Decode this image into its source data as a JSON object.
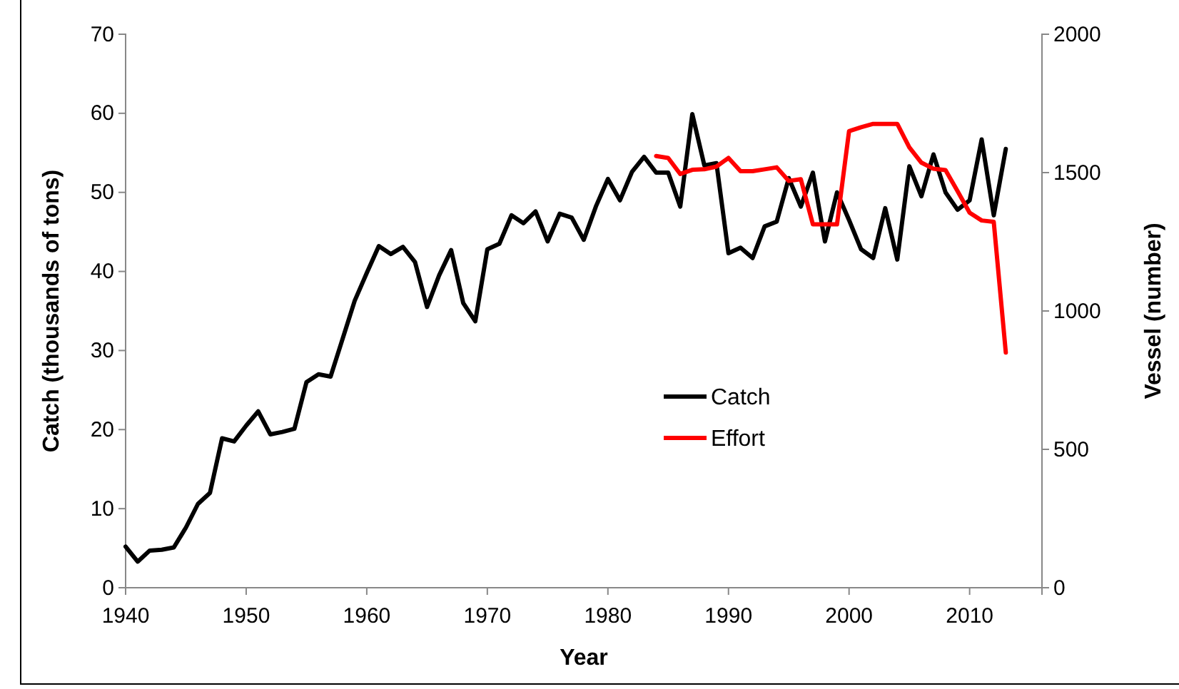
{
  "chart_data": {
    "type": "line",
    "xlabel": "Year",
    "ylabel": "Catch (thousands of tons)",
    "y2label": "Vessel (number)",
    "xlim": [
      1940,
      2016
    ],
    "xticks": [
      1940,
      1950,
      1960,
      1970,
      1980,
      1990,
      2000,
      2010
    ],
    "ylim": [
      0,
      70
    ],
    "yticks": [
      0,
      10,
      20,
      30,
      40,
      50,
      60,
      70
    ],
    "y2lim": [
      0,
      2000
    ],
    "y2ticks": [
      0,
      500,
      1000,
      1500,
      2000
    ],
    "grid": false,
    "legend": "center",
    "marker": "none",
    "line_style": "solid",
    "series": [
      {
        "name": "Catch",
        "color": "#000000",
        "x": [
          1940,
          1941,
          1942,
          1943,
          1944,
          1945,
          1946,
          1947,
          1948,
          1949,
          1950,
          1951,
          1952,
          1953,
          1954,
          1955,
          1956,
          1957,
          1958,
          1959,
          1960,
          1961,
          1962,
          1963,
          1964,
          1965,
          1966,
          1967,
          1968,
          1969,
          1970,
          1971,
          1972,
          1973,
          1974,
          1975,
          1976,
          1977,
          1978,
          1979,
          1980,
          1981,
          1982,
          1983,
          1984,
          1985,
          1986,
          1987,
          1988,
          1989,
          1990,
          1991,
          1992,
          1993,
          1994,
          1995,
          1996,
          1997,
          1998,
          1999,
          2000,
          2001,
          2002,
          2003,
          2004,
          2005,
          2006,
          2007,
          2008,
          2009,
          2010,
          2011,
          2012,
          2013
        ],
        "values": [
          5.2,
          3.3,
          4.7,
          4.8,
          5.1,
          7.6,
          10.6,
          12,
          18.9,
          18.5,
          20.5,
          22.3,
          19.4,
          19.7,
          20.1,
          26,
          27,
          26.7,
          31.5,
          36.3,
          39.8,
          43.2,
          42.2,
          43.1,
          41.2,
          35.5,
          39.5,
          42.7,
          36,
          33.7,
          42.8,
          43.5,
          47.1,
          46.1,
          47.6,
          43.8,
          47.3,
          46.8,
          44,
          48.2,
          51.7,
          49,
          52.6,
          54.5,
          52.5,
          52.5,
          48.2,
          59.9,
          53.4,
          53.7,
          42.3,
          43,
          41.7,
          45.7,
          46.3,
          51.8,
          48.2,
          52.5,
          43.8,
          50,
          46.5,
          42.8,
          41.7,
          48,
          41.5,
          53.3,
          49.5,
          54.8,
          50,
          47.8,
          49,
          56.7,
          47.1,
          55.5
        ]
      },
      {
        "name": "Effort",
        "color": "#ff0000",
        "axis": "y2",
        "x": [
          1984,
          1985,
          1986,
          1987,
          1988,
          1989,
          1990,
          1991,
          1992,
          1993,
          1994,
          1995,
          1996,
          1997,
          1998,
          1999,
          2000,
          2001,
          2002,
          2003,
          2004,
          2005,
          2006,
          2007,
          2008,
          2009,
          2010,
          2011,
          2012,
          2013
        ],
        "values": [
          1560,
          1553,
          1495,
          1510,
          1512,
          1522,
          1553,
          1505,
          1505,
          1512,
          1519,
          1470,
          1476,
          1313,
          1313,
          1313,
          1650,
          1664,
          1676,
          1676,
          1676,
          1591,
          1536,
          1514,
          1509,
          1433,
          1355,
          1327,
          1322,
          850
        ]
      }
    ]
  }
}
